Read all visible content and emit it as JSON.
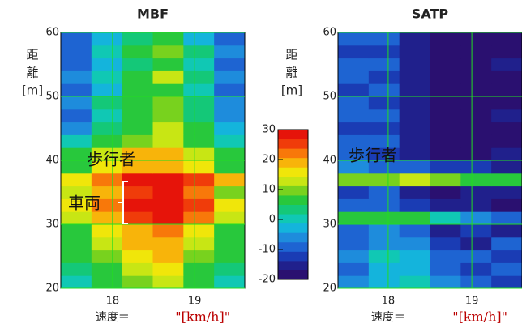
{
  "chart_data": [
    {
      "type": "heatmap",
      "title": "MBF",
      "ylabel": [
        "距",
        "離",
        "[m]"
      ],
      "xlabel": "速度＝",
      "xunit": "\"[km/h]\"",
      "annotations": [
        "歩行者",
        "車両"
      ],
      "xlim": [
        17.37,
        19.61
      ],
      "xticks": [
        18,
        19
      ],
      "ylim": [
        20,
        60
      ],
      "yticks": [
        20,
        30,
        40,
        50,
        60
      ],
      "grid": true,
      "grid_color": "#22dd22",
      "z": [
        [
          0,
          5,
          10,
          12,
          5,
          0
        ],
        [
          2,
          8,
          12,
          15,
          8,
          2
        ],
        [
          5,
          10,
          15,
          18,
          10,
          5
        ],
        [
          5,
          12,
          18,
          20,
          12,
          5
        ],
        [
          8,
          15,
          20,
          22,
          15,
          8
        ],
        [
          12,
          20,
          25,
          28,
          22,
          12
        ],
        [
          15,
          22,
          28,
          30,
          25,
          15
        ],
        [
          12,
          20,
          26,
          28,
          22,
          10
        ],
        [
          15,
          22,
          28,
          30,
          25,
          18
        ],
        [
          8,
          15,
          18,
          20,
          15,
          8
        ],
        [
          5,
          12,
          18,
          20,
          12,
          5
        ],
        [
          0,
          5,
          10,
          12,
          5,
          0
        ],
        [
          -5,
          2,
          8,
          12,
          5,
          -2
        ],
        [
          -8,
          0,
          5,
          10,
          2,
          -5
        ],
        [
          -5,
          2,
          8,
          10,
          2,
          -5
        ],
        [
          -10,
          -2,
          5,
          8,
          0,
          -8
        ],
        [
          -5,
          0,
          8,
          12,
          2,
          -5
        ],
        [
          -10,
          -3,
          3,
          8,
          0,
          -8
        ],
        [
          -8,
          0,
          5,
          10,
          2,
          -5
        ],
        [
          -10,
          -2,
          3,
          8,
          -2,
          -10
        ]
      ]
    },
    {
      "type": "heatmap",
      "title": "SATP",
      "ylabel": [
        "距",
        "離",
        "[m]"
      ],
      "xlabel": "速度＝",
      "xunit": "\"[km/h]\"",
      "annotations": [
        "歩行者"
      ],
      "xlim": [
        17.4,
        19.6
      ],
      "xticks": [
        18,
        19
      ],
      "ylim": [
        20,
        60
      ],
      "yticks": [
        20,
        30,
        40,
        50,
        60
      ],
      "grid": true,
      "grid_color": "#22dd22",
      "z": [
        [
          -5,
          -2,
          0,
          -5,
          -10,
          -12
        ],
        [
          -8,
          -3,
          -2,
          -8,
          -12,
          -10
        ],
        [
          -5,
          0,
          -3,
          -10,
          -8,
          -12
        ],
        [
          -10,
          -5,
          -5,
          -12,
          -15,
          -10
        ],
        [
          -8,
          -5,
          -8,
          -15,
          -12,
          -15
        ],
        [
          5,
          8,
          5,
          0,
          -5,
          -8
        ],
        [
          -10,
          -8,
          -12,
          -15,
          -15,
          -18
        ],
        [
          -12,
          -10,
          -15,
          -18,
          -15,
          -15
        ],
        [
          10,
          10,
          12,
          10,
          8,
          5
        ],
        [
          -5,
          -8,
          -10,
          -12,
          -12,
          -15
        ],
        [
          -10,
          -12,
          -15,
          -18,
          -18,
          -15
        ],
        [
          -8,
          -10,
          -15,
          -18,
          -18,
          -18
        ],
        [
          -12,
          -12,
          -15,
          -18,
          -18,
          -18
        ],
        [
          -10,
          -10,
          -15,
          -18,
          -18,
          -15
        ],
        [
          -8,
          -12,
          -15,
          -18,
          -18,
          -18
        ],
        [
          -12,
          -10,
          -15,
          -18,
          -18,
          -18
        ],
        [
          -10,
          -12,
          -15,
          -18,
          -18,
          -18
        ],
        [
          -8,
          -10,
          -15,
          -18,
          -18,
          -15
        ],
        [
          -12,
          -12,
          -15,
          -18,
          -18,
          -18
        ],
        [
          -10,
          -10,
          -15,
          -18,
          -18,
          -18
        ]
      ]
    }
  ],
  "colorbar": {
    "clim": [
      -20,
      30
    ],
    "ticks": [
      30,
      20,
      10,
      0,
      -10,
      -20
    ],
    "colors": [
      "#2a1070",
      "#20208c",
      "#1a3cb4",
      "#1e64d2",
      "#1e8cdc",
      "#14b4dc",
      "#10c8b4",
      "#14c878",
      "#28c83c",
      "#78d21e",
      "#c8e614",
      "#f0e60a",
      "#f8b40a",
      "#f8780a",
      "#f03c0a",
      "#e6140a"
    ]
  }
}
